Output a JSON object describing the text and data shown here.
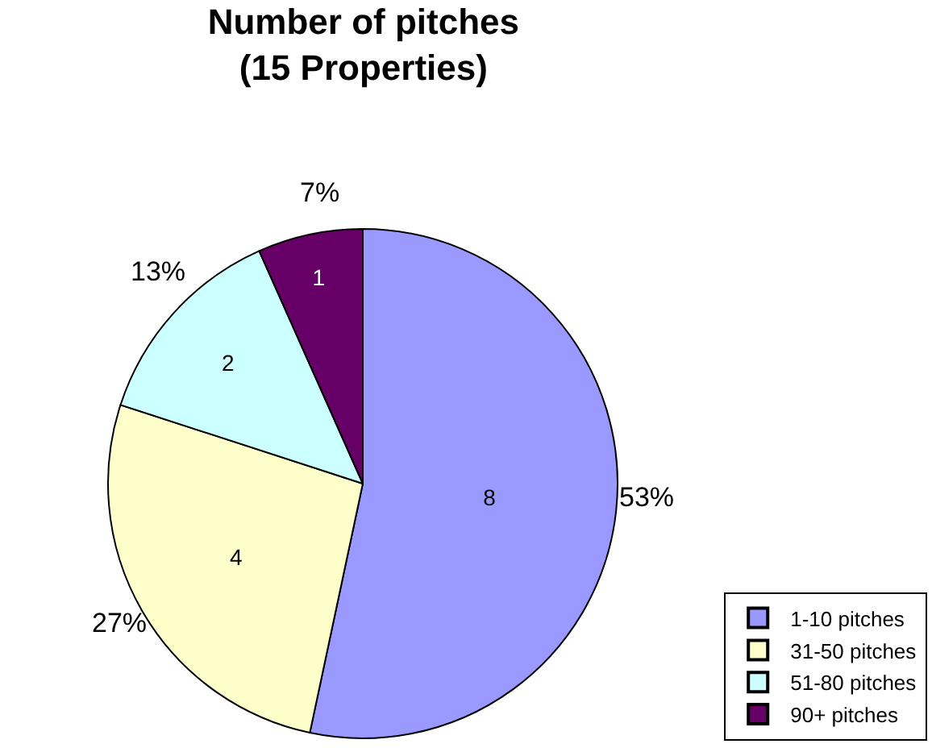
{
  "chart_data": {
    "type": "pie",
    "title": "Number of pitches\n(15 Properties)",
    "categories": [
      "1-10 pitches",
      "31-50 pitches",
      "51-80 pitches",
      "90+ pitches"
    ],
    "values": [
      8,
      4,
      2,
      1
    ],
    "colors": [
      "#9999ff",
      "#ffffcc",
      "#ccffff",
      "#660066"
    ],
    "value_labels": [
      "8",
      "4",
      "2",
      "1"
    ],
    "annotations": [
      "53%",
      "27%",
      "13%",
      "7%"
    ],
    "legend": "bottom right"
  }
}
